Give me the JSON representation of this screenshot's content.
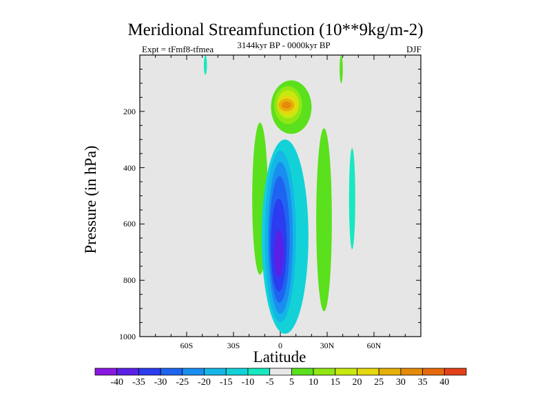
{
  "chart_data": {
    "type": "filled-contour",
    "title": "Meridional Streamfunction (10**9kg/m-2)",
    "left_label": "Expt = tFmf8-tfmea",
    "center_label": "3144kyr BP - 0000kyr BP",
    "right_label": "DJF",
    "xlabel": "Latitude",
    "ylabel": "Pressure (in hPa)",
    "xlim": [
      -90,
      90
    ],
    "ylim": [
      1000,
      0
    ],
    "xticks": [
      {
        "value": -60,
        "label": "60S"
      },
      {
        "value": -30,
        "label": "30S"
      },
      {
        "value": 0,
        "label": "0"
      },
      {
        "value": 30,
        "label": "30N"
      },
      {
        "value": 60,
        "label": "60N"
      }
    ],
    "yticks": [
      {
        "value": 200,
        "label": "200"
      },
      {
        "value": 400,
        "label": "400"
      },
      {
        "value": 600,
        "label": "600"
      },
      {
        "value": 800,
        "label": "800"
      },
      {
        "value": 1000,
        "label": "1000"
      }
    ],
    "background_color": "#e6e6e6",
    "colorbar": {
      "labels": [
        "-40",
        "-35",
        "-30",
        "-25",
        "-20",
        "-15",
        "-10",
        "-5",
        "5",
        "10",
        "15",
        "20",
        "25",
        "30",
        "35",
        "40"
      ],
      "colors": [
        "#8a18e0",
        "#5a20e6",
        "#2c3cf0",
        "#1f64f0",
        "#1a8ef0",
        "#14b6e6",
        "#12d2d8",
        "#18e8c0",
        "#e8e8e8",
        "#5ae01c",
        "#92e614",
        "#c8e810",
        "#e6d80e",
        "#e6b00a",
        "#e68a0a",
        "#e66a0c",
        "#e4401a"
      ]
    },
    "regions": [
      {
        "lat": [
          -18,
          -8
        ],
        "p": [
          240,
          780
        ],
        "level": "5",
        "color": "#5ae01c"
      },
      {
        "lat": [
          -49,
          -47
        ],
        "p": [
          0,
          70
        ],
        "level": "-5",
        "color": "#18e8c0"
      },
      {
        "lat": [
          38,
          40
        ],
        "p": [
          0,
          100
        ],
        "level": "5",
        "color": "#5ae01c"
      },
      {
        "lat": [
          23,
          33
        ],
        "p": [
          260,
          910
        ],
        "level": "5",
        "color": "#5ae01c"
      },
      {
        "lat": [
          44,
          48
        ],
        "p": [
          330,
          690
        ],
        "level": "-5",
        "color": "#18e8c0"
      },
      {
        "lat": [
          -12,
          18
        ],
        "p": [
          300,
          990
        ],
        "level": "-10",
        "color": "#12d2d8"
      },
      {
        "lat": [
          -10,
          10
        ],
        "p": [
          340,
          950
        ],
        "level": "-15",
        "color": "#14b6e6"
      },
      {
        "lat": [
          -8,
          8
        ],
        "p": [
          380,
          920
        ],
        "level": "-20",
        "color": "#1a8ef0"
      },
      {
        "lat": [
          -7,
          6
        ],
        "p": [
          430,
          880
        ],
        "level": "-25",
        "color": "#1f64f0"
      },
      {
        "lat": [
          -6,
          4
        ],
        "p": [
          510,
          840
        ],
        "level": "-30",
        "color": "#2c3cf0"
      },
      {
        "lat": [
          -4,
          2
        ],
        "p": [
          620,
          790
        ],
        "level": "-35",
        "color": "#5a20e6"
      },
      {
        "lat": [
          -6,
          20
        ],
        "p": [
          90,
          280
        ],
        "level": "5",
        "color": "#5ae01c"
      },
      {
        "lat": [
          -4,
          14
        ],
        "p": [
          110,
          245
        ],
        "level": "10",
        "color": "#92e614"
      },
      {
        "lat": [
          -2,
          12
        ],
        "p": [
          125,
          225
        ],
        "level": "15",
        "color": "#c8e810"
      },
      {
        "lat": [
          -2,
          11
        ],
        "p": [
          145,
          210
        ],
        "level": "20",
        "color": "#e6d80e"
      },
      {
        "lat": [
          -1,
          9
        ],
        "p": [
          155,
          200
        ],
        "level": "25",
        "color": "#e6b00a"
      },
      {
        "lat": [
          1,
          7
        ],
        "p": [
          165,
          190
        ],
        "level": "30",
        "color": "#e68a0a"
      }
    ]
  }
}
